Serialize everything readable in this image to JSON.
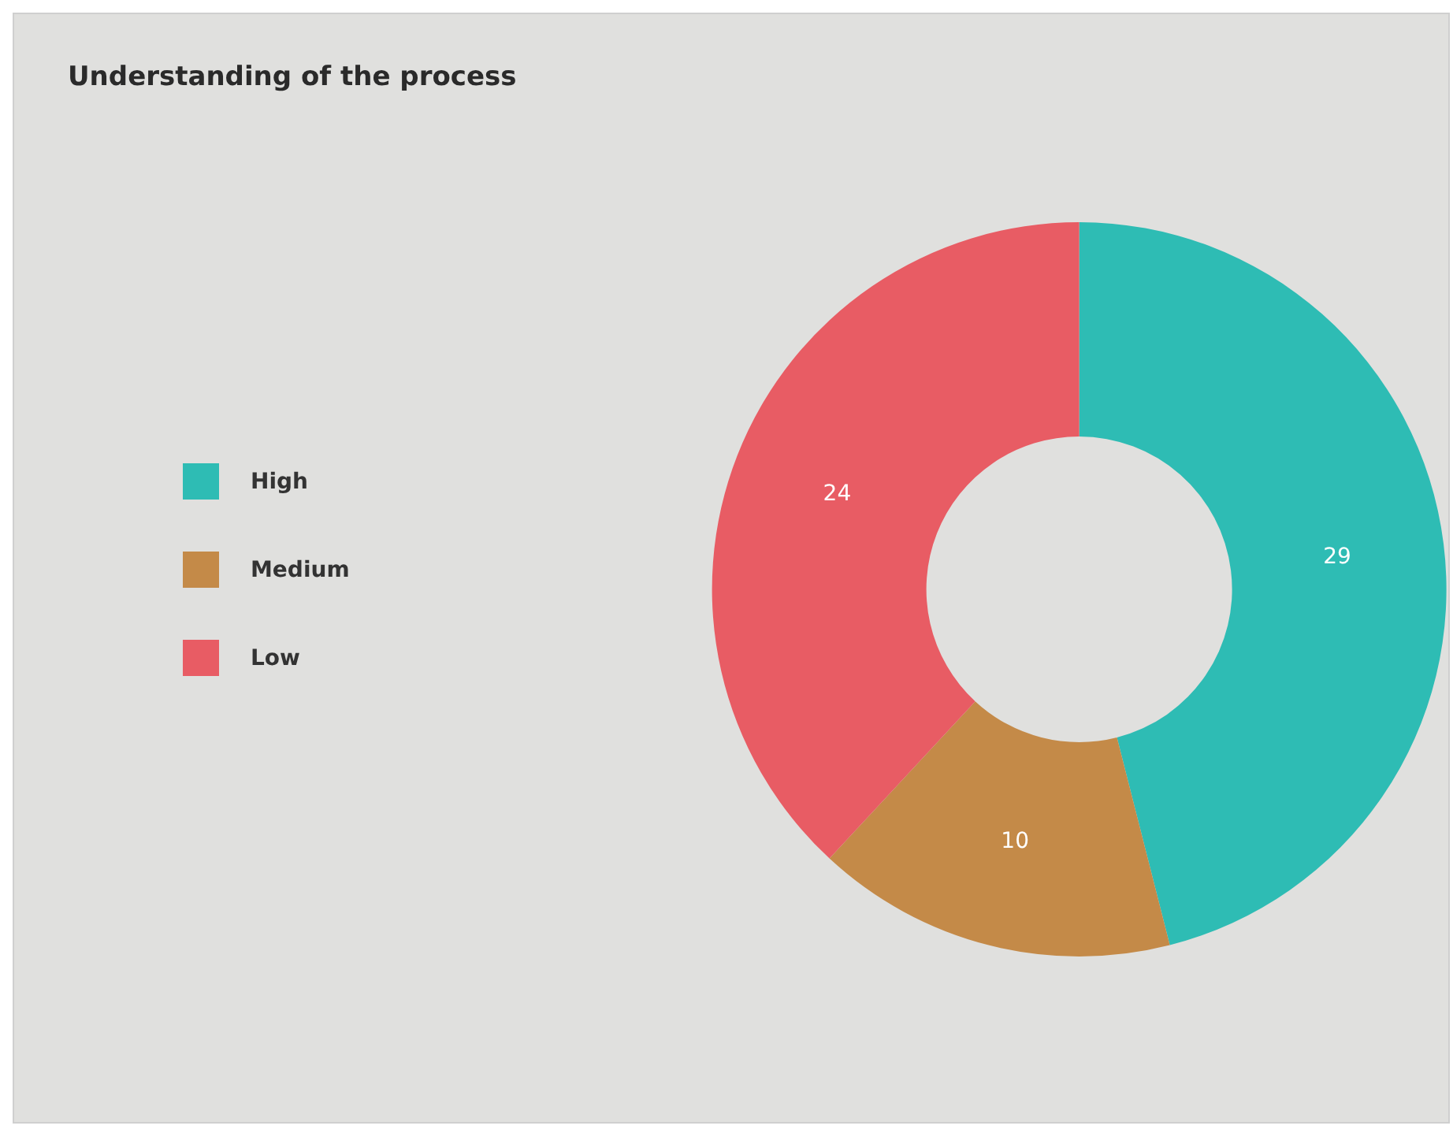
{
  "chart_data": {
    "type": "donut",
    "title": "Understanding of the process",
    "categories": [
      "High",
      "Medium",
      "Low"
    ],
    "values": [
      29,
      10,
      24
    ],
    "colors": [
      "#2ebcb4",
      "#c48a48",
      "#e85c64"
    ],
    "data_labels": true,
    "legend": "left"
  }
}
